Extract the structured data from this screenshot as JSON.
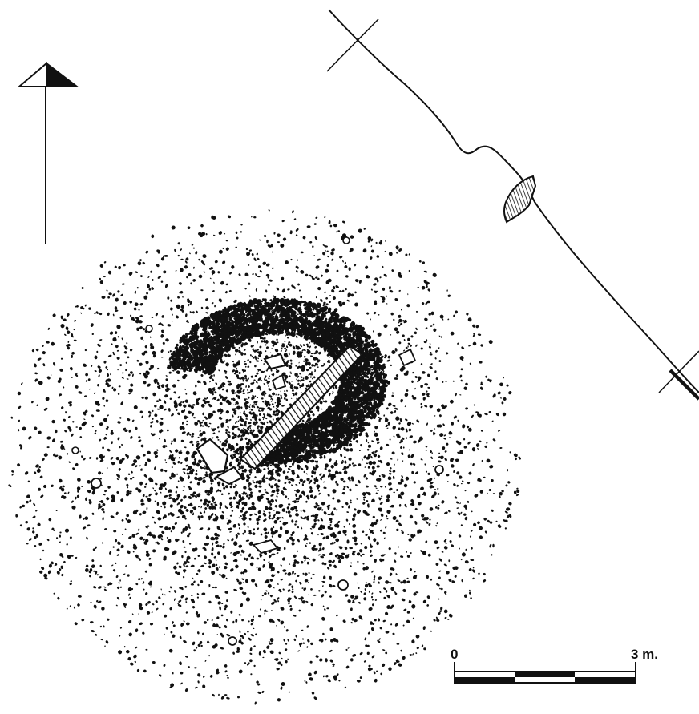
{
  "scale_bar": {
    "start_label": "0",
    "end_label": "3 m.",
    "segments": 3
  },
  "colors": {
    "ink": "#111111",
    "paper": "#ffffff"
  },
  "icons": {
    "north_arrow": "north-arrow-icon"
  }
}
